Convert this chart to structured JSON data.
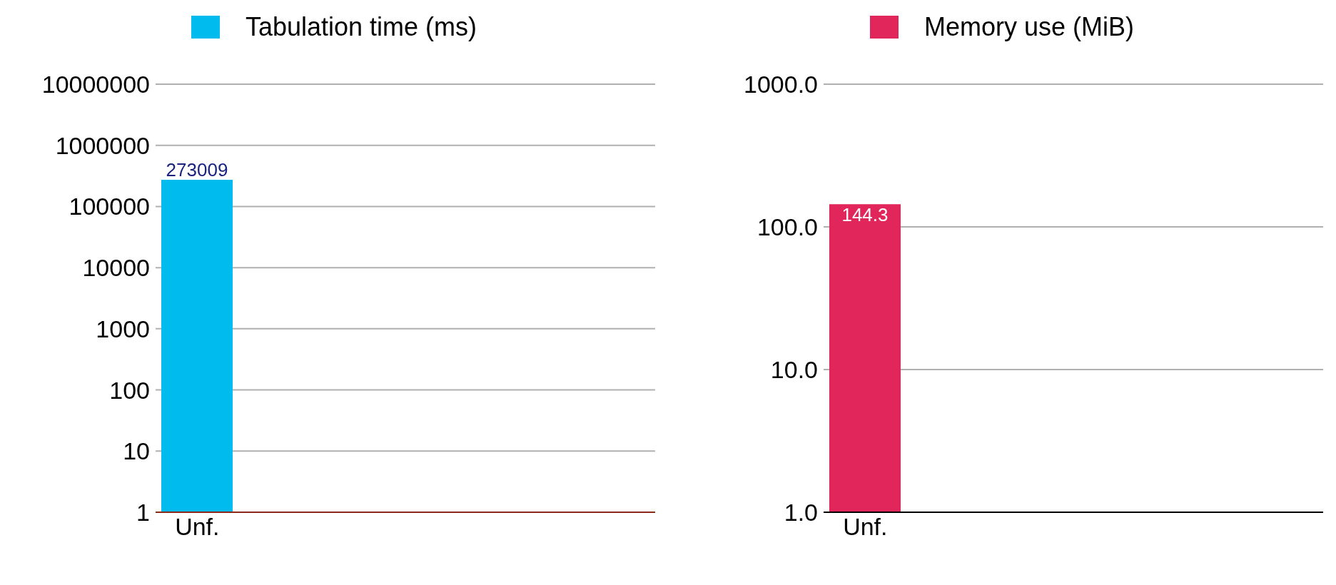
{
  "chart_data": [
    {
      "type": "bar",
      "categories": [
        "Unf.",
        null,
        null,
        null,
        null,
        null
      ],
      "series": [
        {
          "name": "Tabulation time (ms)",
          "color": "#00bbee",
          "values": [
            273009,
            null,
            null,
            null,
            null,
            null
          ]
        }
      ],
      "log": "y",
      "ylim": [
        1,
        10000000
      ],
      "yticks": [
        1,
        10,
        100,
        1000,
        10000,
        100000,
        1000000,
        10000000
      ],
      "grid": "y",
      "legend": "top",
      "data_labels": true
    },
    {
      "type": "bar",
      "categories": [
        "Unf.",
        null,
        null,
        null,
        null,
        null
      ],
      "series": [
        {
          "name": "Memory use (MiB)",
          "color": "#e0265a",
          "values": [
            144.3,
            null,
            null,
            null,
            null,
            null
          ]
        }
      ],
      "log": "y",
      "ylim": [
        1,
        1000
      ],
      "yticks": [
        {
          "value": 1,
          "label": "1.0"
        },
        {
          "value": 10,
          "label": "10.0"
        },
        {
          "value": 100,
          "label": "100.0"
        },
        {
          "value": 1000,
          "label": "1000.0"
        }
      ],
      "grid": "y",
      "legend": "top",
      "data_labels": true
    }
  ]
}
